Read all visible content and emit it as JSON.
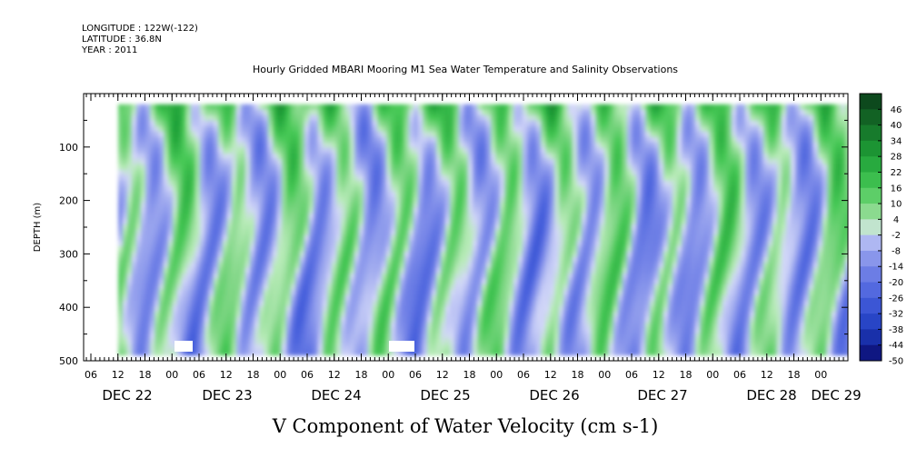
{
  "header": {
    "longitude": "LONGITUDE : 122W(-122)",
    "latitude": "LATITUDE : 36.8N",
    "year": "YEAR : 2011",
    "title": "Hourly Gridded MBARI Mooring M1 Sea Water Temperature and Salinity Observations"
  },
  "footer": {
    "variable_title": "V Component of Water Velocity (cm s-1)"
  },
  "chart_data": {
    "type": "heatmap",
    "title": "Hourly Gridded MBARI Mooring M1 Sea Water Temperature and Salinity Observations",
    "xlabel": "",
    "ylabel": "DEPTH (m)",
    "y_ticks": [
      100,
      200,
      300,
      400,
      500
    ],
    "y_tick_labels": [
      "100",
      "200",
      "300",
      "400",
      "500"
    ],
    "ylim": [
      0,
      500
    ],
    "y_inverted": true,
    "hour_tick_labels": [
      "06",
      "12",
      "18",
      "00",
      "06",
      "12",
      "18",
      "00",
      "06",
      "12",
      "18",
      "00",
      "06",
      "12",
      "18",
      "00",
      "06",
      "12",
      "18",
      "00",
      "06",
      "12",
      "18",
      "00",
      "06",
      "12",
      "18",
      "00"
    ],
    "day_labels": [
      "DEC 22",
      "DEC 23",
      "DEC 24",
      "DEC 25",
      "DEC 26",
      "DEC 27",
      "DEC 28",
      "DEC 29"
    ],
    "colorbar": {
      "labels": [
        "46",
        "40",
        "34",
        "28",
        "22",
        "16",
        "10",
        "4",
        "-2",
        "-8",
        "-14",
        "-20",
        "-26",
        "-32",
        "-38",
        "-44",
        "-50"
      ],
      "min": -50,
      "max": 52,
      "step": 6
    },
    "color_scale": {
      "positive": "#1f9a34",
      "negative": "#6f7fe6",
      "neutral": "#cfd3f4"
    },
    "data_depth_range": [
      20,
      485
    ],
    "notes": "alternating vertical bands of positive (green) and negative (blue) velocity across Dec 22-29"
  }
}
